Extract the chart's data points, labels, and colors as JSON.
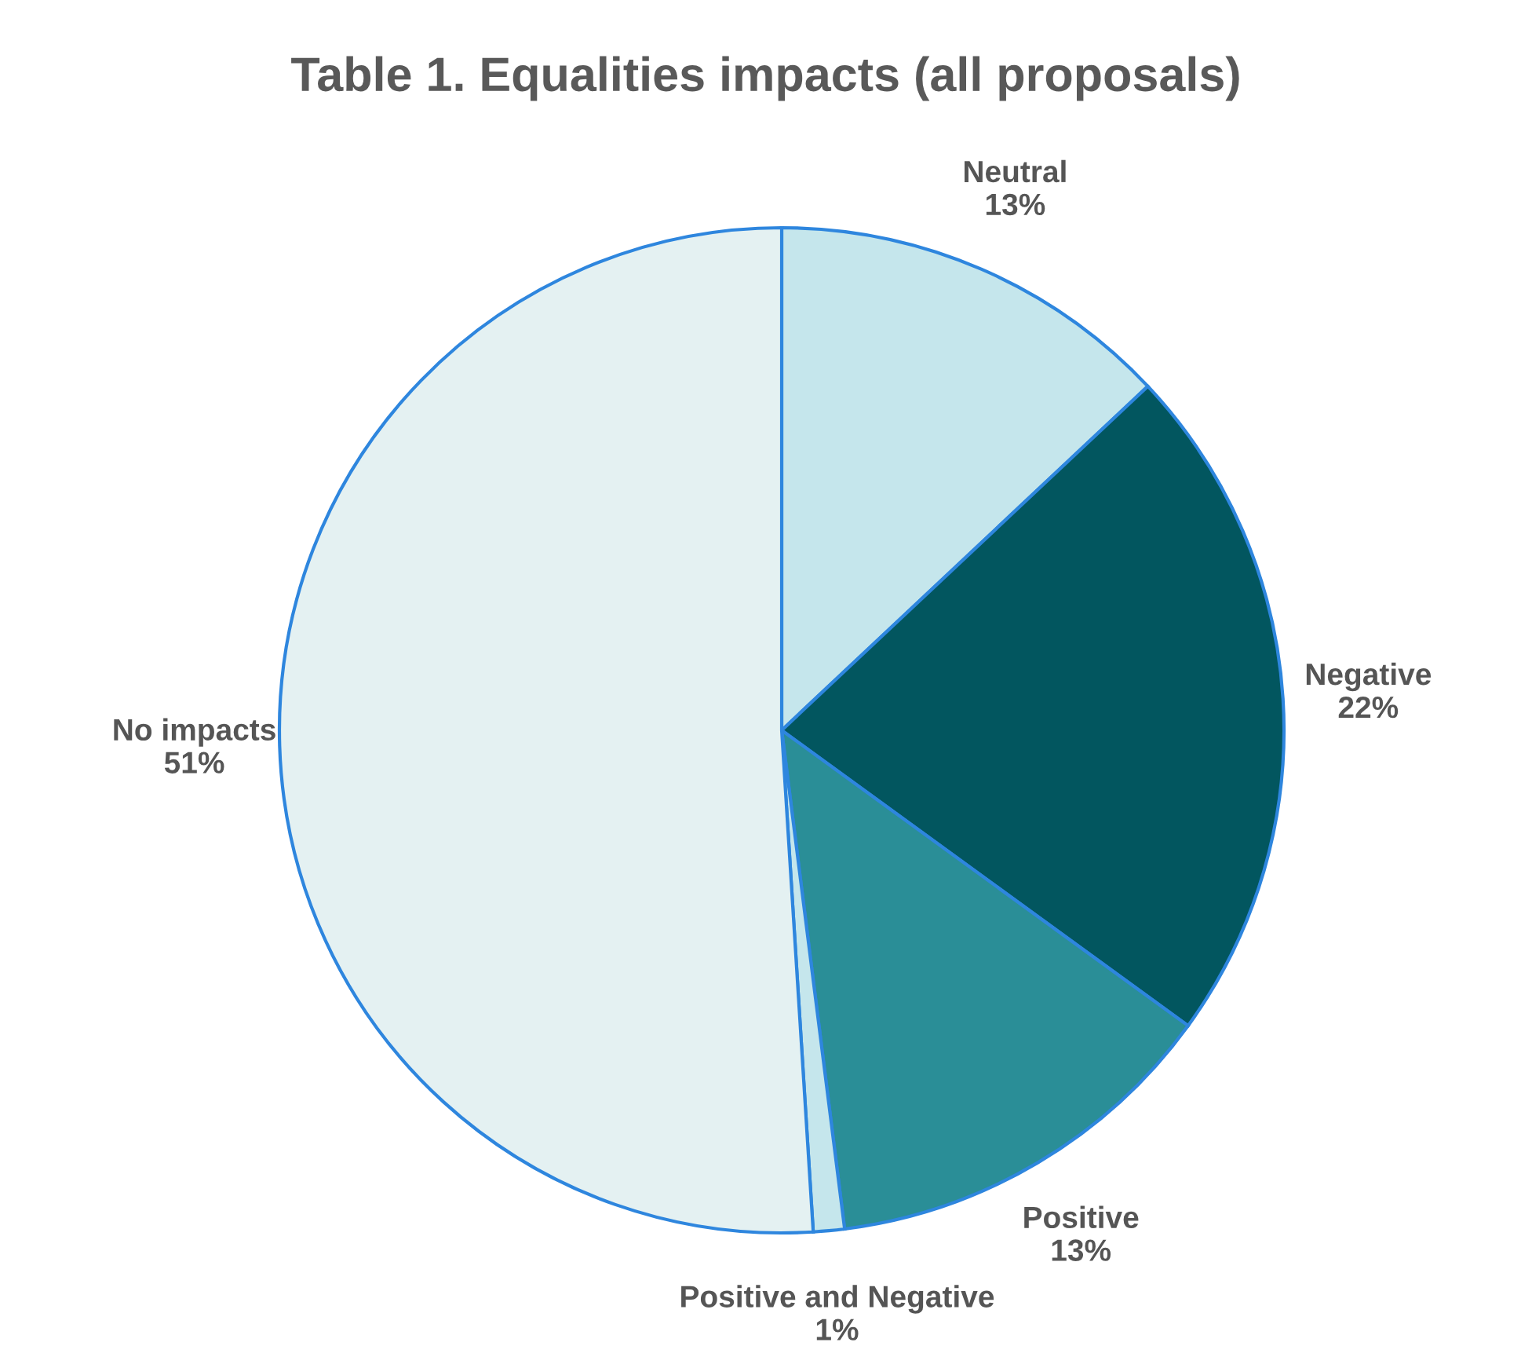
{
  "chart_data": {
    "type": "pie",
    "title": "Table 1. Equalities impacts (all proposals)",
    "categories": [
      "Neutral",
      "Negative",
      "Positive",
      "Positive and Negative",
      "No impacts"
    ],
    "values": [
      13,
      22,
      13,
      1,
      51
    ],
    "value_labels": [
      "13%",
      "22%",
      "13%",
      "1%",
      "51%"
    ],
    "colors": [
      "#c5e6ec",
      "#02565f",
      "#2a8e97",
      "#c5e6ec",
      "#e4f1f2"
    ]
  }
}
